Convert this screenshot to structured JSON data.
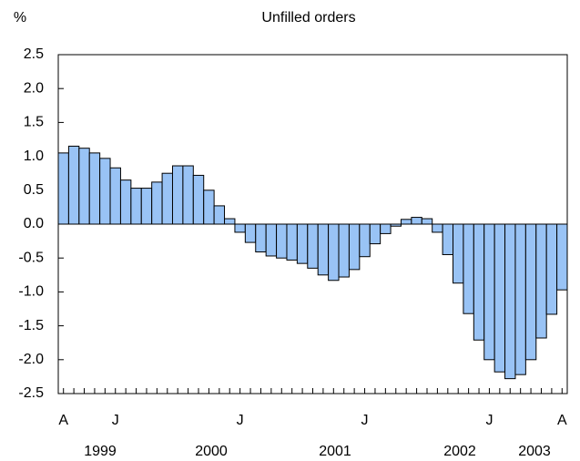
{
  "chart_data": {
    "type": "bar",
    "title": "Unfilled orders",
    "y_label": "%",
    "color": "#99c3f5",
    "ylim": [
      -2.5,
      2.5
    ],
    "yticks": [
      2.5,
      {
        "value": 2,
        "label": "2.0"
      },
      1.5,
      {
        "value": 1,
        "label": "1.0"
      },
      0.5,
      {
        "value": 0,
        "label": "0.0"
      },
      -0.5,
      {
        "value": -1,
        "label": "-1.0"
      },
      -1.5,
      {
        "value": -2,
        "label": "-2.0"
      },
      -2.5
    ],
    "categories": [
      "A",
      null,
      null,
      null,
      null,
      "J",
      null,
      null,
      null,
      null,
      null,
      null,
      null,
      null,
      null,
      null,
      null,
      "J",
      null,
      null,
      null,
      null,
      null,
      null,
      null,
      null,
      null,
      null,
      null,
      "J",
      null,
      null,
      null,
      null,
      null,
      null,
      null,
      null,
      null,
      null,
      null,
      "J",
      null,
      null,
      null,
      null,
      null,
      null,
      "A"
    ],
    "values": [
      1.05,
      1.15,
      1.12,
      1.05,
      0.97,
      0.83,
      0.65,
      0.53,
      0.53,
      0.62,
      0.75,
      0.86,
      0.86,
      0.72,
      0.5,
      0.27,
      0.08,
      -0.12,
      -0.27,
      -0.41,
      -0.47,
      -0.5,
      -0.53,
      -0.58,
      -0.65,
      -0.75,
      -0.83,
      -0.78,
      -0.67,
      -0.48,
      -0.29,
      -0.14,
      -0.03,
      0.07,
      0.1,
      0.08,
      -0.12,
      -0.45,
      -0.87,
      -1.32,
      -1.71,
      -2.0,
      -2.18,
      -2.28,
      -2.22,
      -2.0,
      -1.68,
      -1.33,
      -0.97
    ],
    "year_labels": [
      "1999",
      "2000",
      "2001",
      "2002",
      "2003"
    ]
  }
}
